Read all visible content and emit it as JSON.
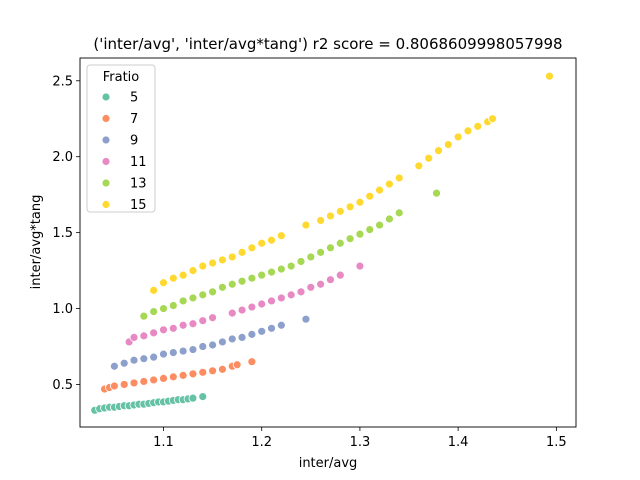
{
  "chart_data": {
    "type": "scatter",
    "title": "('inter/avg', 'inter/avg*tang') r2 score = 0.8068609998057998",
    "xlabel": "inter/avg",
    "ylabel": "inter/avg*tang",
    "xlim": [
      1.015,
      1.52
    ],
    "ylim": [
      0.22,
      2.65
    ],
    "xticks": [
      "1.0",
      "1.1",
      "1.2",
      "1.3",
      "1.4",
      "1.5"
    ],
    "yticks": [
      "0.5",
      "1.0",
      "1.5",
      "2.0",
      "2.5"
    ],
    "xtick_values": [
      1.0,
      1.1,
      1.2,
      1.3,
      1.4,
      1.5
    ],
    "ytick_values": [
      0.5,
      1.0,
      1.5,
      2.0,
      2.5
    ],
    "grid": false,
    "legend": {
      "title": "Fratio",
      "placement": "top-left"
    },
    "series": [
      {
        "name": "5",
        "color": "#66c2a5",
        "x": [
          1.03,
          1.035,
          1.04,
          1.045,
          1.05,
          1.055,
          1.06,
          1.065,
          1.07,
          1.075,
          1.08,
          1.085,
          1.09,
          1.095,
          1.1,
          1.105,
          1.11,
          1.115,
          1.12,
          1.125,
          1.13,
          1.14
        ],
        "y": [
          0.33,
          0.34,
          0.345,
          0.35,
          0.35,
          0.355,
          0.36,
          0.36,
          0.365,
          0.37,
          0.37,
          0.375,
          0.38,
          0.385,
          0.385,
          0.39,
          0.395,
          0.4,
          0.4,
          0.405,
          0.41,
          0.42
        ]
      },
      {
        "name": "7",
        "color": "#fc8d62",
        "x": [
          1.04,
          1.045,
          1.05,
          1.06,
          1.07,
          1.08,
          1.09,
          1.1,
          1.11,
          1.12,
          1.13,
          1.14,
          1.15,
          1.16,
          1.17,
          1.175,
          1.19
        ],
        "y": [
          0.47,
          0.48,
          0.49,
          0.5,
          0.51,
          0.52,
          0.53,
          0.54,
          0.55,
          0.56,
          0.57,
          0.58,
          0.59,
          0.6,
          0.62,
          0.63,
          0.65
        ]
      },
      {
        "name": "9",
        "color": "#8da0cb",
        "x": [
          1.05,
          1.06,
          1.07,
          1.08,
          1.09,
          1.1,
          1.11,
          1.12,
          1.13,
          1.14,
          1.15,
          1.16,
          1.17,
          1.18,
          1.19,
          1.2,
          1.21,
          1.22,
          1.245
        ],
        "y": [
          0.62,
          0.64,
          0.66,
          0.67,
          0.68,
          0.7,
          0.71,
          0.72,
          0.73,
          0.75,
          0.76,
          0.78,
          0.8,
          0.81,
          0.83,
          0.85,
          0.87,
          0.89,
          0.93
        ]
      },
      {
        "name": "11",
        "color": "#e78ac3",
        "x": [
          1.065,
          1.07,
          1.08,
          1.09,
          1.1,
          1.11,
          1.12,
          1.13,
          1.14,
          1.15,
          1.17,
          1.18,
          1.19,
          1.2,
          1.21,
          1.22,
          1.23,
          1.24,
          1.25,
          1.26,
          1.27,
          1.28,
          1.3
        ],
        "y": [
          0.78,
          0.81,
          0.82,
          0.84,
          0.86,
          0.87,
          0.89,
          0.9,
          0.92,
          0.94,
          0.97,
          0.99,
          1.01,
          1.03,
          1.05,
          1.07,
          1.09,
          1.11,
          1.14,
          1.16,
          1.19,
          1.22,
          1.28
        ]
      },
      {
        "name": "13",
        "color": "#a6d854",
        "x": [
          1.08,
          1.09,
          1.1,
          1.11,
          1.12,
          1.13,
          1.14,
          1.15,
          1.16,
          1.17,
          1.18,
          1.19,
          1.2,
          1.21,
          1.22,
          1.23,
          1.24,
          1.25,
          1.26,
          1.27,
          1.28,
          1.29,
          1.3,
          1.31,
          1.32,
          1.33,
          1.34,
          1.378
        ],
        "y": [
          0.95,
          0.98,
          1.0,
          1.02,
          1.05,
          1.07,
          1.09,
          1.11,
          1.14,
          1.16,
          1.18,
          1.2,
          1.22,
          1.24,
          1.26,
          1.28,
          1.31,
          1.34,
          1.37,
          1.4,
          1.43,
          1.46,
          1.49,
          1.52,
          1.55,
          1.59,
          1.63,
          1.76
        ]
      },
      {
        "name": "15",
        "color": "#ffd92f",
        "x": [
          1.09,
          1.1,
          1.11,
          1.12,
          1.13,
          1.14,
          1.15,
          1.16,
          1.17,
          1.18,
          1.19,
          1.2,
          1.21,
          1.22,
          1.245,
          1.26,
          1.27,
          1.28,
          1.29,
          1.3,
          1.31,
          1.32,
          1.33,
          1.34,
          1.36,
          1.37,
          1.38,
          1.39,
          1.4,
          1.41,
          1.42,
          1.43,
          1.435,
          1.493
        ],
        "y": [
          1.12,
          1.17,
          1.2,
          1.22,
          1.25,
          1.28,
          1.3,
          1.32,
          1.34,
          1.37,
          1.4,
          1.43,
          1.45,
          1.48,
          1.55,
          1.58,
          1.61,
          1.64,
          1.67,
          1.7,
          1.74,
          1.78,
          1.82,
          1.86,
          1.94,
          1.99,
          2.04,
          2.08,
          2.13,
          2.17,
          2.2,
          2.23,
          2.25,
          2.53
        ]
      }
    ]
  }
}
